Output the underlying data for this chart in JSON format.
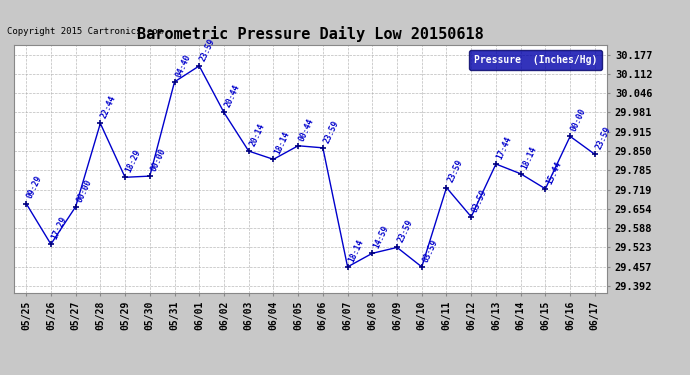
{
  "title": "Barometric Pressure Daily Low 20150618",
  "copyright_text": "Copyright 2015 Cartronics.com",
  "legend_label": "Pressure  (Inches/Hg)",
  "x_labels": [
    "05/25",
    "05/26",
    "05/27",
    "05/28",
    "05/29",
    "05/30",
    "05/31",
    "06/01",
    "06/02",
    "06/03",
    "06/04",
    "06/05",
    "06/06",
    "06/07",
    "06/08",
    "06/09",
    "06/10",
    "06/11",
    "06/12",
    "06/13",
    "06/14",
    "06/15",
    "06/16",
    "06/17"
  ],
  "y_values": [
    29.672,
    29.534,
    29.661,
    29.944,
    29.761,
    29.765,
    30.085,
    30.139,
    29.981,
    29.85,
    29.822,
    29.868,
    29.861,
    29.457,
    29.503,
    29.523,
    29.457,
    29.726,
    29.627,
    29.806,
    29.773,
    29.722,
    29.9,
    29.839
  ],
  "point_labels": [
    "09:29",
    "17:29",
    "00:00",
    "22:44",
    "18:29",
    "00:00",
    "04:40",
    "23:59",
    "20:44",
    "20:14",
    "18:14",
    "00:44",
    "23:59",
    "18:14",
    "14:59",
    "23:59",
    "03:59",
    "23:59",
    "03:59",
    "17:44",
    "18:14",
    "15:44",
    "00:00",
    "23:59"
  ],
  "y_ticks": [
    29.392,
    29.457,
    29.523,
    29.588,
    29.654,
    29.719,
    29.785,
    29.85,
    29.915,
    29.981,
    30.046,
    30.112,
    30.177
  ],
  "y_min": 29.37,
  "y_max": 30.21,
  "line_color": "#0000CC",
  "marker_color": "#000080",
  "bg_color": "#C8C8C8",
  "plot_bg_color": "#FFFFFF",
  "grid_color": "#AAAAAA",
  "title_color": "#000000",
  "label_color": "#0000CC",
  "legend_bg": "#0000AA",
  "legend_text_color": "#FFFFFF"
}
